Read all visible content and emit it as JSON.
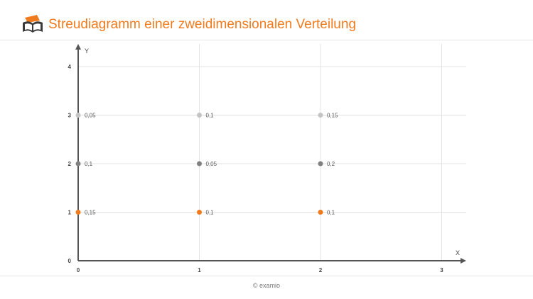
{
  "header": {
    "title": "Streudiagramm einer zweidimensionalen Verteilung",
    "logo_icon": "graduation-book-icon"
  },
  "footer": {
    "copyright": "© examio"
  },
  "colors": {
    "accent": "#f07b1f",
    "dark_gray": "#808080",
    "light_gray": "#c4c4c4",
    "axis": "#555555",
    "grid": "#e3e3e3"
  },
  "chart_data": {
    "type": "scatter",
    "xlabel": "X",
    "ylabel": "Y",
    "xlim": [
      0,
      3
    ],
    "ylim": [
      0,
      4
    ],
    "x_ticks": [
      "0",
      "1",
      "2",
      "3"
    ],
    "y_ticks": [
      "0",
      "1",
      "2",
      "3",
      "4"
    ],
    "grid": true,
    "series": [
      {
        "color": "#f07b1f",
        "points": [
          {
            "x": 0,
            "y": 1,
            "label": "0,15"
          },
          {
            "x": 1,
            "y": 1,
            "label": "0,1"
          },
          {
            "x": 2,
            "y": 1,
            "label": "0,1"
          }
        ]
      },
      {
        "color": "#808080",
        "points": [
          {
            "x": 0,
            "y": 2,
            "label": "0,1"
          },
          {
            "x": 1,
            "y": 2,
            "label": "0,05"
          },
          {
            "x": 2,
            "y": 2,
            "label": "0,2"
          }
        ]
      },
      {
        "color": "#c4c4c4",
        "points": [
          {
            "x": 0,
            "y": 3,
            "label": "0,05"
          },
          {
            "x": 1,
            "y": 3,
            "label": "0,1"
          },
          {
            "x": 2,
            "y": 3,
            "label": "0,15"
          }
        ]
      }
    ]
  }
}
